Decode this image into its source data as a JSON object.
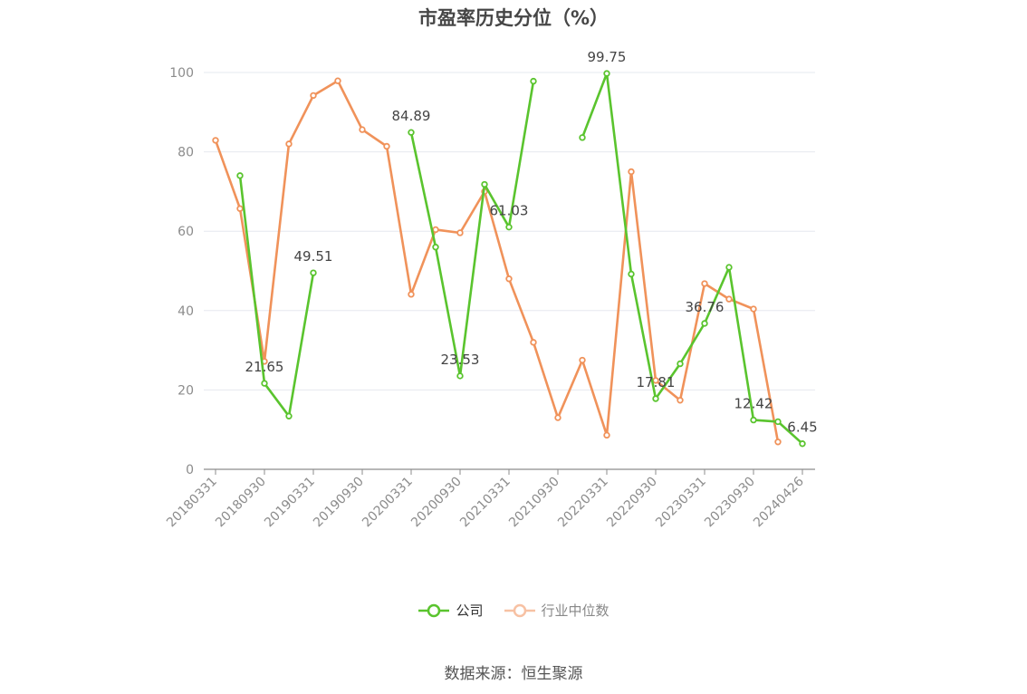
{
  "chart_data": {
    "type": "line",
    "title": "市盈率历史分位（%）",
    "categories": [
      "20180331",
      "20180630",
      "20180930",
      "20181231",
      "20190331",
      "20190630",
      "20190930",
      "20191231",
      "20200331",
      "20200630",
      "20200930",
      "20201231",
      "20210331",
      "20210630",
      "20210930",
      "20211231",
      "20220331",
      "20220630",
      "20220930",
      "20221231",
      "20230331",
      "20230630",
      "20230930",
      "20231231",
      "20240426"
    ],
    "tick_labels": [
      "20180331",
      "20180930",
      "20190331",
      "20190930",
      "20200331",
      "20200930",
      "20210331",
      "20210930",
      "20220331",
      "20220930",
      "20230331",
      "20230930",
      "20240426"
    ],
    "ylim": [
      0,
      100
    ],
    "yticks": [
      0,
      20,
      40,
      60,
      80,
      100
    ],
    "grid": true,
    "legend_position": "bottom",
    "series": [
      {
        "name": "公司",
        "color": "#5ac42e",
        "values": [
          null,
          74.0,
          21.65,
          13.4,
          49.51,
          null,
          null,
          null,
          84.89,
          56.0,
          23.53,
          71.8,
          61.03,
          97.8,
          null,
          83.6,
          99.75,
          49.2,
          17.81,
          26.6,
          36.76,
          50.9,
          12.42,
          12.0,
          6.45
        ],
        "labels": [
          null,
          null,
          "21.65",
          null,
          "49.51",
          null,
          null,
          null,
          "84.89",
          null,
          "23.53",
          null,
          "61.03",
          null,
          null,
          null,
          "99.75",
          null,
          "17.81",
          null,
          "36.76",
          null,
          "12.42",
          null,
          "6.45"
        ]
      },
      {
        "name": "行业中位数",
        "color": "#f0925a",
        "values": [
          82.9,
          65.7,
          27.2,
          82.0,
          94.2,
          97.9,
          85.6,
          81.4,
          44.1,
          60.4,
          59.6,
          70.0,
          48.0,
          32.0,
          13.0,
          27.5,
          8.6,
          75.0,
          22.4,
          17.4,
          46.8,
          42.9,
          40.4,
          6.9,
          null
        ]
      }
    ]
  },
  "legend": {
    "company": "公司",
    "industry": "行业中位数"
  },
  "source": "数据来源：恒生聚源"
}
